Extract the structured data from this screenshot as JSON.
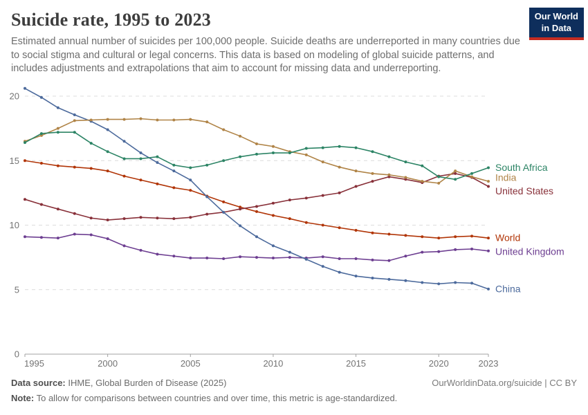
{
  "header": {
    "title": "Suicide rate, 1995 to 2023",
    "subtitle": "Estimated annual number of suicides per 100,000 people. Suicide deaths are underreported in many countries due to social stigma and cultural or legal concerns. This data is based on modeling of global suicide patterns, and includes adjustments and extrapolations that aim to account for missing data and underreporting.",
    "logo": {
      "line1": "Our World",
      "line2": "in Data",
      "bg_color": "#0E2E5C",
      "accent_color": "#C52C22"
    }
  },
  "chart_data": {
    "type": "line",
    "title": "Suicide rate, 1995 to 2023",
    "ylabel": "",
    "xlabel": "",
    "xlim": [
      1995,
      2023
    ],
    "ylim": [
      0,
      21
    ],
    "yticks": [
      0,
      5,
      10,
      15,
      20
    ],
    "xticks": [
      1995,
      2000,
      2005,
      2010,
      2015,
      2020,
      2023
    ],
    "grid": "dashed horizontal gridlines",
    "legend": "colored labels at right end of each line",
    "x": [
      1995,
      1996,
      1997,
      1998,
      1999,
      2000,
      2001,
      2002,
      2003,
      2004,
      2005,
      2006,
      2007,
      2008,
      2009,
      2010,
      2011,
      2012,
      2013,
      2014,
      2015,
      2016,
      2017,
      2018,
      2019,
      2020,
      2021,
      2022,
      2023
    ],
    "series": [
      {
        "name": "World",
        "color": "#B13507",
        "label_offset": 0,
        "values": [
          15.0,
          14.8,
          14.6,
          14.5,
          14.4,
          14.2,
          13.8,
          13.5,
          13.2,
          12.9,
          12.7,
          12.25,
          11.8,
          11.4,
          11.05,
          10.75,
          10.5,
          10.2,
          10.0,
          9.8,
          9.6,
          9.4,
          9.3,
          9.2,
          9.1,
          9.0,
          9.1,
          9.15,
          9.0
        ]
      },
      {
        "name": "United Kingdom",
        "color": "#6D3E91",
        "label_offset": 1,
        "values": [
          9.1,
          9.05,
          9.0,
          9.3,
          9.25,
          8.95,
          8.4,
          8.05,
          7.75,
          7.6,
          7.45,
          7.45,
          7.4,
          7.55,
          7.5,
          7.45,
          7.5,
          7.45,
          7.55,
          7.4,
          7.4,
          7.3,
          7.25,
          7.6,
          7.9,
          7.95,
          8.1,
          8.15,
          8.0
        ]
      },
      {
        "name": "United States",
        "color": "#883039",
        "label_offset": 7,
        "values": [
          12.0,
          11.6,
          11.25,
          10.9,
          10.55,
          10.4,
          10.5,
          10.6,
          10.55,
          10.5,
          10.6,
          10.85,
          11.0,
          11.25,
          11.45,
          11.7,
          11.95,
          12.1,
          12.3,
          12.5,
          13.0,
          13.4,
          13.75,
          13.55,
          13.3,
          13.8,
          14.0,
          13.7,
          13.0
        ]
      },
      {
        "name": "China",
        "color": "#4C6A9C",
        "label_offset": 0,
        "values": [
          20.6,
          19.9,
          19.1,
          18.55,
          18.05,
          17.4,
          16.5,
          15.6,
          14.85,
          14.2,
          13.5,
          12.2,
          11.0,
          9.95,
          9.1,
          8.4,
          7.9,
          7.35,
          6.8,
          6.35,
          6.05,
          5.9,
          5.8,
          5.7,
          5.55,
          5.45,
          5.55,
          5.5,
          5.05
        ]
      },
      {
        "name": "India",
        "color": "#B08447",
        "label_offset": -5,
        "values": [
          16.5,
          16.95,
          17.5,
          18.1,
          18.15,
          18.2,
          18.2,
          18.25,
          18.15,
          18.15,
          18.2,
          18.0,
          17.4,
          16.9,
          16.3,
          16.1,
          15.7,
          15.45,
          14.9,
          14.5,
          14.2,
          14.0,
          13.9,
          13.7,
          13.4,
          13.25,
          14.2,
          13.75,
          13.4
        ]
      },
      {
        "name": "South Africa",
        "color": "#2C8465",
        "label_offset": 0,
        "values": [
          16.4,
          17.1,
          17.2,
          17.2,
          16.35,
          15.7,
          15.15,
          15.15,
          15.3,
          14.65,
          14.45,
          14.65,
          15.0,
          15.3,
          15.5,
          15.6,
          15.6,
          15.95,
          16.0,
          16.1,
          16.0,
          15.7,
          15.3,
          14.9,
          14.6,
          13.75,
          13.55,
          14.0,
          14.45
        ]
      }
    ]
  },
  "footer": {
    "source_label": "Data source:",
    "source_text": "IHME, Global Burden of Disease (2025)",
    "credit": "OurWorldinData.org/suicide | CC BY",
    "note_label": "Note:",
    "note_text": "To allow for comparisons between countries and over time, this metric is age-standardized."
  }
}
